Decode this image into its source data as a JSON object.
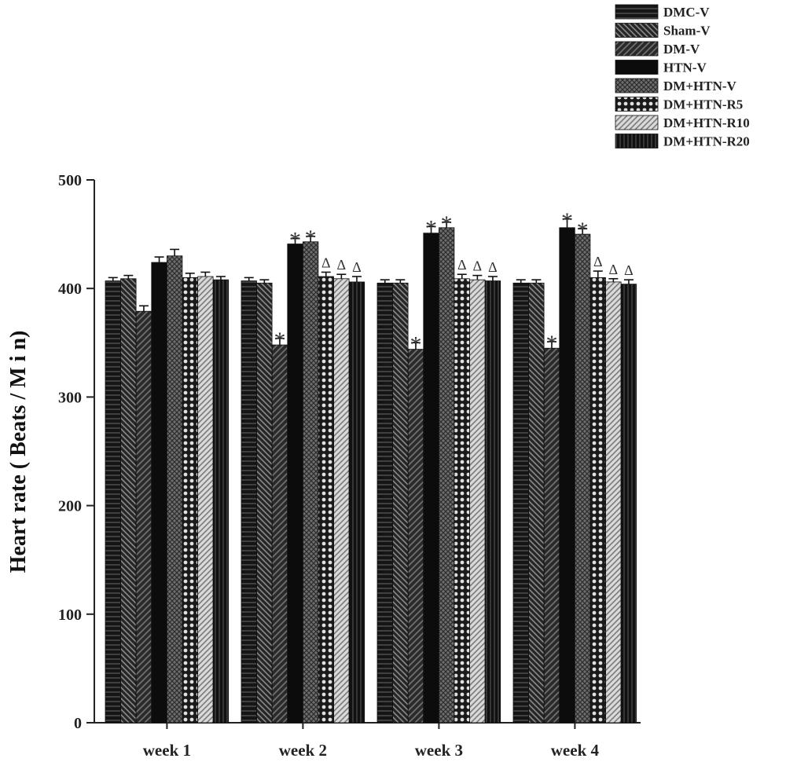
{
  "chart_data": {
    "type": "bar",
    "title": "",
    "xlabel": "",
    "ylabel": "Heart rate ( Beats / M i n)",
    "ylim": [
      0,
      500
    ],
    "yticks": [
      "0",
      "100",
      "200",
      "300",
      "400",
      "500"
    ],
    "grid": false,
    "legend_position": "top-right",
    "categories": [
      "week 1",
      "week 2",
      "week 3",
      "week 4"
    ],
    "series": [
      {
        "name": "DMC-V",
        "pattern": "hstripes",
        "values": [
          407,
          407,
          405,
          405
        ],
        "errors": [
          3,
          3,
          3,
          3
        ],
        "annotations": [
          "",
          "",
          "",
          ""
        ]
      },
      {
        "name": "Sham-V",
        "pattern": "diag-down",
        "values": [
          409,
          405,
          405,
          405
        ],
        "errors": [
          3,
          3,
          3,
          3
        ],
        "annotations": [
          "",
          "",
          "",
          ""
        ]
      },
      {
        "name": "DM-V",
        "pattern": "diag-up",
        "values": [
          379,
          348,
          344,
          345
        ],
        "errors": [
          5,
          6,
          6,
          6
        ],
        "annotations": [
          "",
          "*",
          "*",
          "*"
        ]
      },
      {
        "name": "HTN-V",
        "pattern": "solid",
        "values": [
          424,
          441,
          451,
          456
        ],
        "errors": [
          5,
          5,
          6,
          8
        ],
        "annotations": [
          "",
          "*",
          "*",
          "*"
        ]
      },
      {
        "name": "DM+HTN-V",
        "pattern": "crosshatch",
        "values": [
          430,
          443,
          456,
          450
        ],
        "errors": [
          6,
          5,
          5,
          5
        ],
        "annotations": [
          "",
          "*",
          "*",
          "*"
        ]
      },
      {
        "name": "DM+HTN-R5",
        "pattern": "checker",
        "values": [
          410,
          411,
          409,
          410
        ],
        "errors": [
          4,
          4,
          4,
          6
        ],
        "annotations": [
          "",
          "Δ",
          "Δ",
          "Δ"
        ]
      },
      {
        "name": "DM+HTN-R10",
        "pattern": "light-diag",
        "values": [
          411,
          409,
          408,
          406
        ],
        "errors": [
          4,
          4,
          4,
          3
        ],
        "annotations": [
          "",
          "Δ",
          "Δ",
          "Δ"
        ]
      },
      {
        "name": "DM+HTN-R20",
        "pattern": "vstripes",
        "values": [
          408,
          406,
          407,
          404
        ],
        "errors": [
          3,
          5,
          4,
          4
        ],
        "annotations": [
          "",
          "Δ",
          "Δ",
          "Δ"
        ]
      }
    ]
  }
}
